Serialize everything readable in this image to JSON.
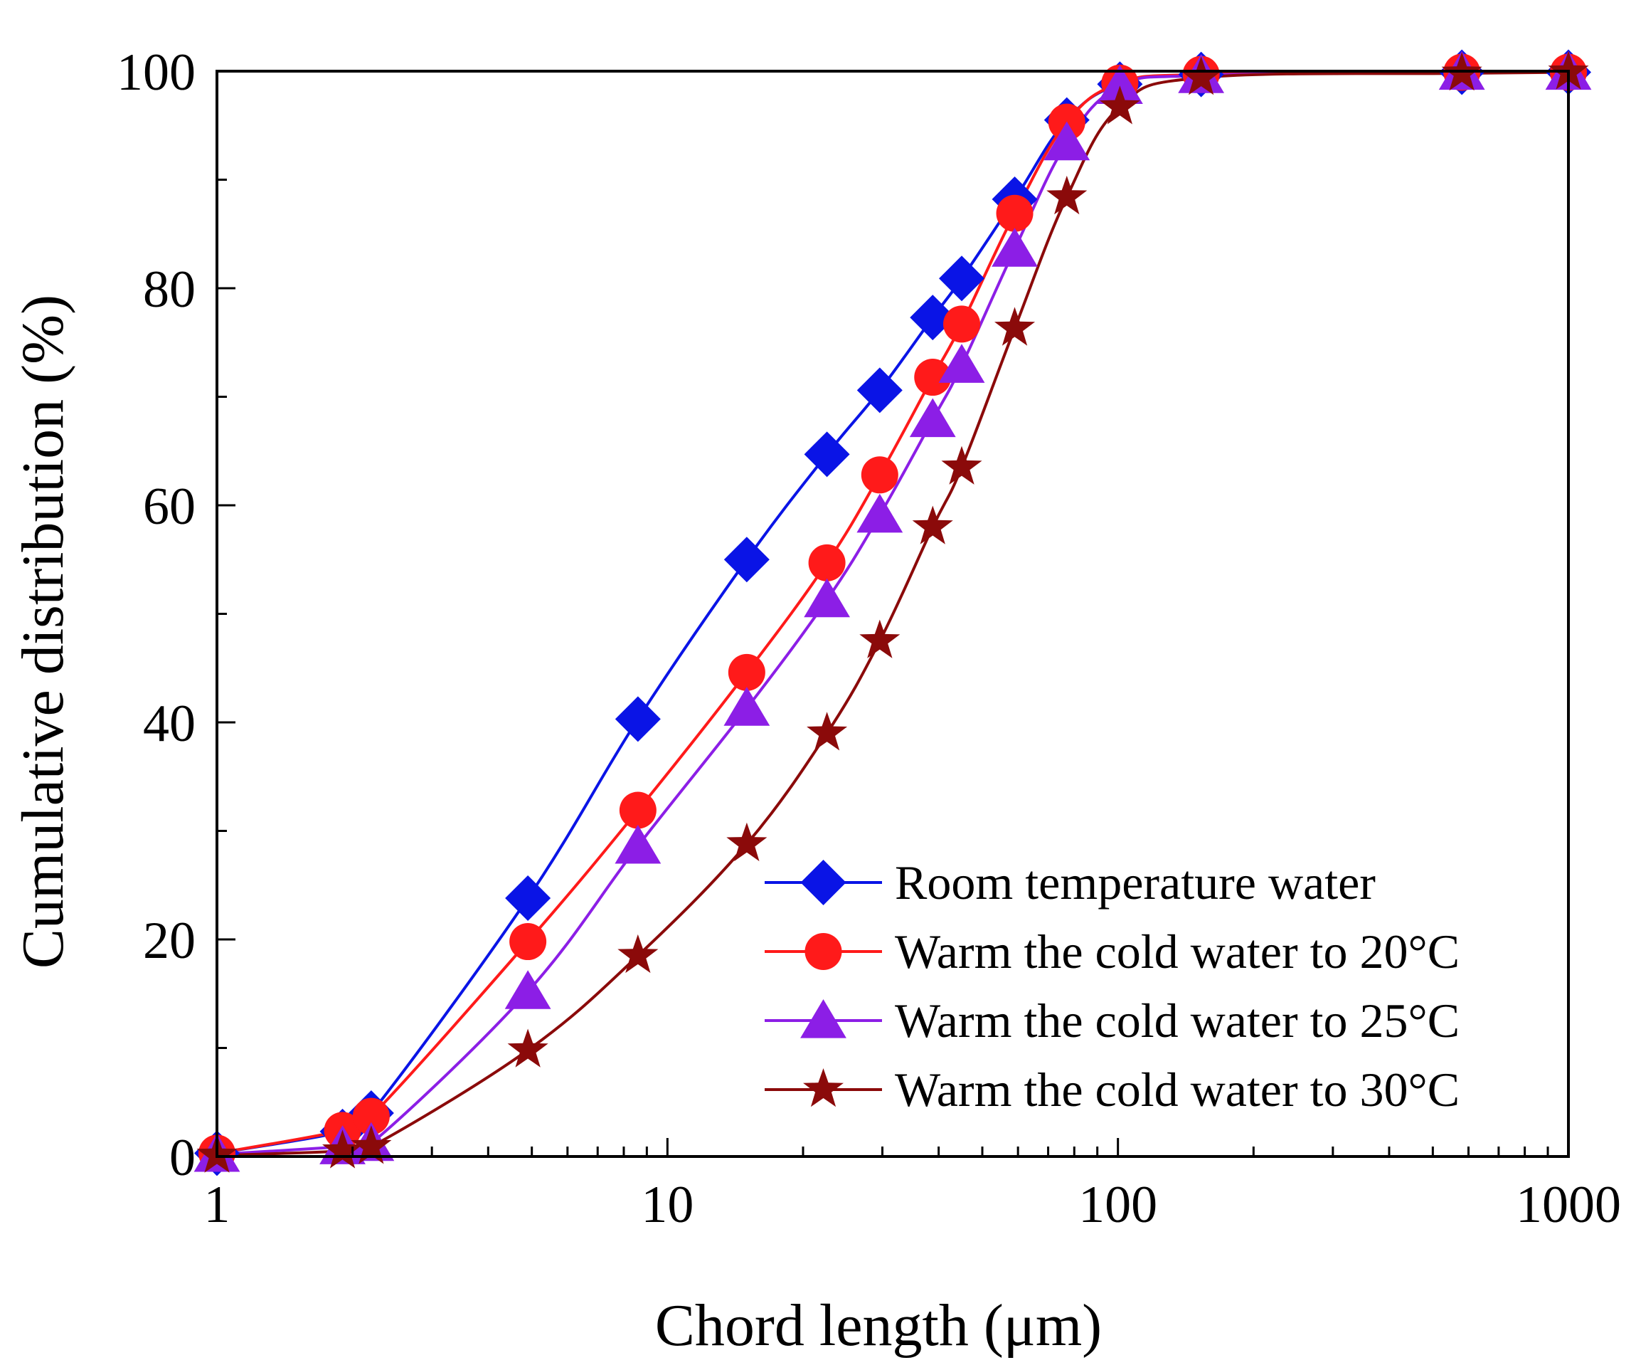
{
  "chart_data": {
    "type": "line",
    "title": "",
    "xlabel": "Chord length  (μm)",
    "ylabel": "Cumulative  distribution  (%)",
    "xscale": "log",
    "xlim": [
      1,
      1000
    ],
    "ylim": [
      0,
      100
    ],
    "xticks": [
      1,
      10,
      100,
      1000
    ],
    "xtick_labels": [
      "1",
      "10",
      "100",
      "1000"
    ],
    "yticks": [
      0,
      20,
      40,
      60,
      80,
      100
    ],
    "ytick_labels": [
      "0",
      "20",
      "40",
      "60",
      "80",
      "100"
    ],
    "grid": false,
    "legend_position": "bottom-right",
    "series": [
      {
        "name": "Room temperature water",
        "label": " Room temperature water",
        "color": "#0a14e6",
        "marker": "diamond",
        "x": [
          1,
          1.9,
          2.2,
          4.9,
          8.6,
          15,
          22.6,
          29.6,
          38.8,
          45,
          59,
          77,
          101,
          153,
          580,
          1000
        ],
        "y": [
          0.3,
          2.3,
          4,
          23.8,
          40.3,
          55,
          64.7,
          70.6,
          77.3,
          80.9,
          88.2,
          95.5,
          98.8,
          99.7,
          99.9,
          99.9
        ]
      },
      {
        "name": "Warm the cold water to 20°C",
        "label": "Warm the cold water to 20°C",
        "color": "#ff1a1a",
        "marker": "circle",
        "x": [
          1,
          1.9,
          2.2,
          4.9,
          8.6,
          15,
          22.6,
          29.6,
          38.8,
          45,
          59,
          77,
          101,
          153,
          580,
          1000
        ],
        "y": [
          0.3,
          2.4,
          3.7,
          19.8,
          31.9,
          44.6,
          54.7,
          62.8,
          71.8,
          76.7,
          86.9,
          95.3,
          98.9,
          99.7,
          99.9,
          99.9
        ]
      },
      {
        "name": "Warm the cold water to 25°C",
        "label": "Warm the cold water to 25°C",
        "color": "#8c1ee6",
        "marker": "triangle",
        "x": [
          1,
          1.9,
          2.2,
          4.9,
          8.6,
          15,
          22.6,
          29.6,
          38.8,
          45,
          59,
          77,
          101,
          153,
          580,
          1000
        ],
        "y": [
          0.2,
          0.9,
          1.2,
          15.2,
          28.6,
          41.3,
          51.3,
          59.1,
          67.9,
          72.9,
          83.6,
          93.4,
          98.6,
          99.6,
          99.9,
          99.9
        ]
      },
      {
        "name": "Warm the cold water to 30°C",
        "label": "Warm the cold water to 30°C",
        "color": "#8b0a0a",
        "marker": "star",
        "x": [
          1,
          1.9,
          2.2,
          4.9,
          8.6,
          15,
          22.6,
          29.6,
          38.8,
          45,
          59,
          77,
          101,
          153,
          580,
          1000
        ],
        "y": [
          0.1,
          0.5,
          0.9,
          9.8,
          18.5,
          28.8,
          39,
          47.5,
          58,
          63.5,
          76.3,
          88.4,
          96.7,
          99.4,
          99.8,
          99.9
        ]
      }
    ]
  }
}
